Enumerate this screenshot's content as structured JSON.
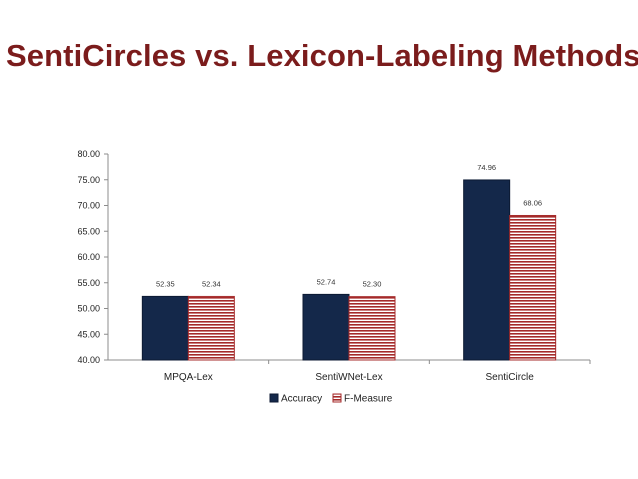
{
  "slide": {
    "title": "SentiCircles vs. Lexicon-Labeling Methods"
  },
  "colors": {
    "title": "#7b1c1c",
    "accuracy": "#14284a",
    "f_measure_stripe": "#a52a2a",
    "f_measure_gap": "#ffffff"
  },
  "chart_data": {
    "type": "bar",
    "categories": [
      "MPQA-Lex",
      "SentiWNet-Lex",
      "SentiCircle"
    ],
    "series": [
      {
        "name": "Accuracy",
        "values": [
          52.35,
          52.74,
          74.96
        ],
        "labels": [
          "52.35",
          "52.74",
          "74.96"
        ]
      },
      {
        "name": "F-Measure",
        "values": [
          52.34,
          52.3,
          68.06
        ],
        "labels": [
          "52.34",
          "52.30",
          "68.06"
        ]
      }
    ],
    "yticks": [
      "40.00",
      "45.00",
      "50.00",
      "55.00",
      "60.00",
      "65.00",
      "70.00",
      "75.00",
      "80.00"
    ],
    "ylim": [
      40,
      80
    ],
    "xlabel": "",
    "ylabel": "",
    "grid": false,
    "legend": "bottom"
  }
}
